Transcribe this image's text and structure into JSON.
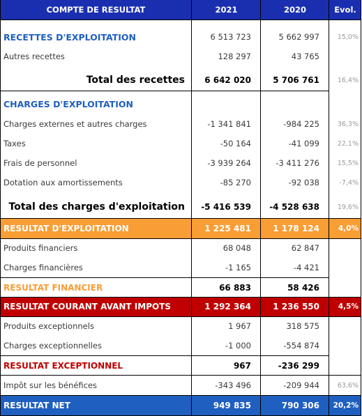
{
  "header": {
    "label": "COMPTE DE RESULTAT",
    "year1": "2021",
    "year2": "2020",
    "evol": "Evol."
  },
  "recettes": {
    "title": "RECETTES D'EXPLOITATION",
    "title_y21": "6 513 723",
    "title_y20": "5 662 997",
    "title_evo": "15,0%",
    "autres_label": "Autres recettes",
    "autres_y21": "128 297",
    "autres_y20": "43 765",
    "total_label": "Total des recettes",
    "total_y21": "6 642 020",
    "total_y20": "5 706 761",
    "total_evo": "16,4%"
  },
  "charges": {
    "title": "CHARGES D'EXPLOITATION",
    "items": [
      {
        "label": "Charges externes et autres charges",
        "y21": "-1 341 841",
        "y20": "-984 225",
        "evo": "36,3%"
      },
      {
        "label": "Taxes",
        "y21": "-50 164",
        "y20": "-41 099",
        "evo": "22,1%"
      },
      {
        "label": "Frais de personnel",
        "y21": "-3 939 264",
        "y20": "-3 411 276",
        "evo": "15,5%"
      },
      {
        "label": "Dotation aux amortissements",
        "y21": "-85 270",
        "y20": "-92 038",
        "evo": "-7,4%"
      }
    ],
    "total_label": "Total des charges d'exploitation",
    "total_y21": "-5 416 539",
    "total_y20": "-4 528 638",
    "total_evo": "19,6%"
  },
  "resultat_exploitation": {
    "label": "RESULTAT D'EXPLOITATION",
    "y21": "1 225 481",
    "y20": "1 178 124",
    "evo": "4,0%"
  },
  "financier": {
    "produits": {
      "label": "Produits financiers",
      "y21": "68 048",
      "y20": "62 847"
    },
    "charges": {
      "label": "Charges financières",
      "y21": "-1 165",
      "y20": "-4 421"
    },
    "resultat": {
      "label": "RESULTAT FINANCIER",
      "y21": "66 883",
      "y20": "58 426"
    }
  },
  "resultat_courant": {
    "label": "RESULTAT COURANT AVANT IMPOTS",
    "y21": "1 292 364",
    "y20": "1 236 550",
    "evo": "4,5%"
  },
  "exceptionnel": {
    "produits": {
      "label": "Produits exceptionnels",
      "y21": "1 967",
      "y20": "318 575"
    },
    "charges": {
      "label": "Charges exceptionnelles",
      "y21": "-1 000",
      "y20": "-554 874"
    },
    "resultat": {
      "label": "RESULTAT EXCEPTIONNEL",
      "y21": "967",
      "y20": "-236 299"
    }
  },
  "impot": {
    "label": "Impôt sur les bénéfices",
    "y21": "-343 496",
    "y20": "-209 944",
    "evo": "63,6%"
  },
  "resultat_net": {
    "label": "RESULTAT NET",
    "y21": "949 835",
    "y20": "790 306",
    "evo": "20,2%"
  }
}
